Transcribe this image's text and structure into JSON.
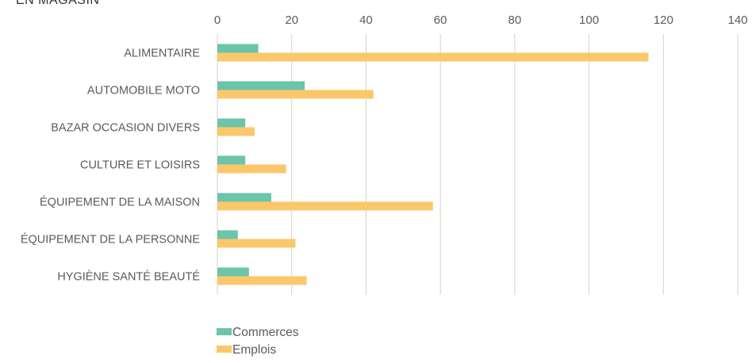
{
  "page": {
    "partial_title": "EN MAGASIN"
  },
  "chart_data": {
    "type": "bar",
    "orientation": "horizontal",
    "categories": [
      "ALIMENTAIRE",
      "AUTOMOBILE MOTO",
      "BAZAR OCCASION DIVERS",
      "CULTURE ET LOISIRS",
      "ÉQUIPEMENT DE LA MAISON",
      "ÉQUIPEMENT DE LA PERSONNE",
      "HYGIÈNE SANTÉ BEAUTÉ"
    ],
    "series": [
      {
        "name": "Commerces",
        "values": [
          11,
          23.5,
          7.5,
          7.5,
          14.5,
          5.5,
          8.5
        ]
      },
      {
        "name": "Emplois",
        "values": [
          116,
          42,
          10,
          18.5,
          58,
          21,
          24
        ]
      }
    ],
    "xlim": [
      0,
      140
    ],
    "x_ticks": [
      0,
      20,
      40,
      60,
      80,
      100,
      120,
      140
    ],
    "x_tick_labels": [
      "0",
      "20",
      "40",
      "60",
      "80",
      "100",
      "120",
      "140"
    ],
    "x_axis_position": "top",
    "grid": "vertical",
    "legend": "bottom-center",
    "colors": {
      "Commerces": "#6dc4ab",
      "Emplois": "#fac86a",
      "grid": "#d8d2c4",
      "text": "#5b5b5b"
    }
  }
}
